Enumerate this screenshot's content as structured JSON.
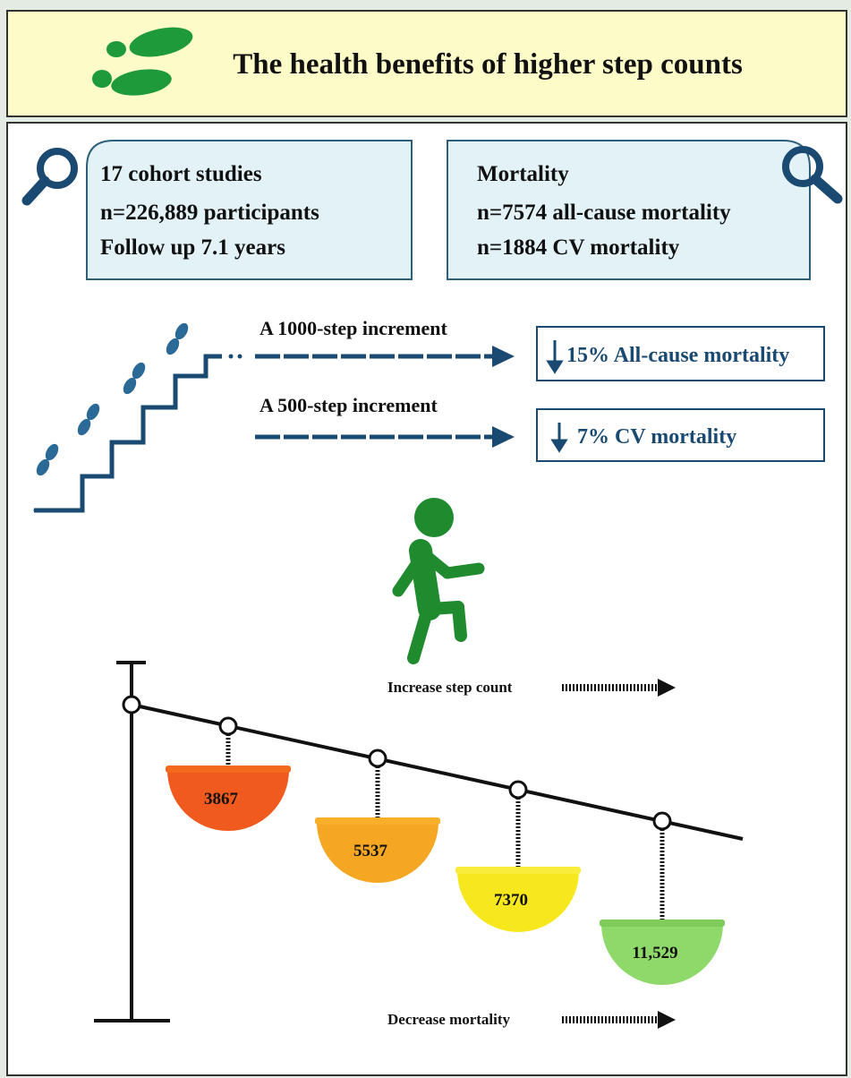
{
  "header": {
    "title": "The health benefits of higher step counts"
  },
  "studies": {
    "lines": [
      "17 cohort studies",
      "n=226,889 participants",
      "Follow up 7.1 years"
    ]
  },
  "mortality": {
    "lines": [
      "Mortality",
      "n=7574 all-cause mortality",
      "n=1884 CV mortality"
    ]
  },
  "increments": [
    {
      "label": "A 1000-step increment",
      "result": "15% All-cause mortality"
    },
    {
      "label": "A 500-step increment",
      "result": "7% CV mortality"
    }
  ],
  "scale": {
    "top_label": "Increase step count",
    "bottom_label": "Decrease mortality",
    "bowls": [
      "3867",
      "5537",
      "7370",
      "11,529"
    ]
  }
}
